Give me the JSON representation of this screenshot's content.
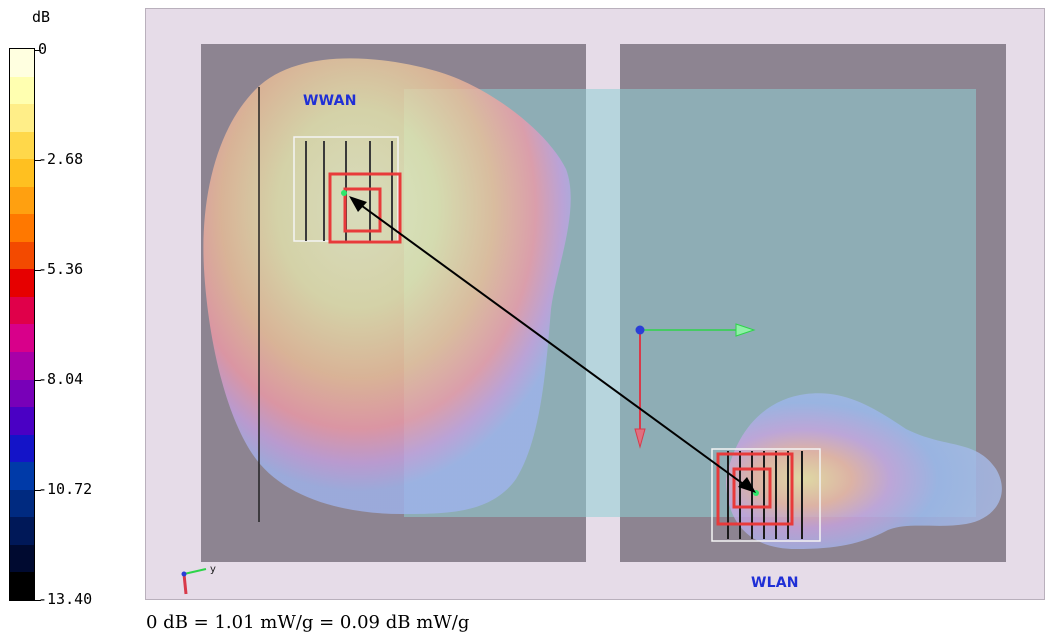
{
  "colors": {
    "viewport_background": "#e6dce8",
    "panel": "#8d8491",
    "overlay": "#8fd0d4",
    "label_blue": "#1f2fd6",
    "arrow": "#000000"
  },
  "scale": {
    "unit": "dB",
    "ticks": [
      "0",
      "-2.68",
      "-5.36",
      "-8.04",
      "-10.72",
      "-13.40"
    ],
    "segments": [
      "#ffffe0",
      "#ffffb0",
      "#ffee88",
      "#ffd84a",
      "#ffc020",
      "#ffa010",
      "#ff7800",
      "#f34a00",
      "#e60000",
      "#e0004a",
      "#d8008a",
      "#a800a8",
      "#7800b8",
      "#4a00c4",
      "#1414c8",
      "#003aa8",
      "#002a80",
      "#001858",
      "#000a30",
      "#000000"
    ]
  },
  "viewport": {
    "labels": {
      "wwan": "WWAN",
      "wlan": "WLAN"
    },
    "axes_icon": {
      "y_label": "y"
    }
  },
  "footer": {
    "text": "0 dB = 1.01 mW/g = 0.09 dB mW/g"
  }
}
